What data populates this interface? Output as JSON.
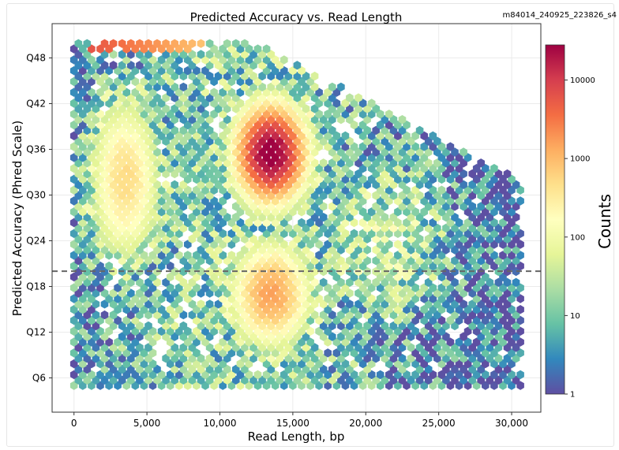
{
  "chart_data": {
    "type": "heatmap",
    "subtype": "hexbin",
    "title": "Predicted Accuracy vs. Read Length",
    "corner_label": "m84014_240925_223826_s4",
    "xlabel": "Read Length, bp",
    "ylabel": "Predicted Accuracy (Phred Scale)",
    "x_ticks": [
      0,
      5000,
      10000,
      15000,
      20000,
      25000,
      30000
    ],
    "x_tick_labels": [
      "0",
      "5,000",
      "10,000",
      "15,000",
      "20,000",
      "25,000",
      "30,000"
    ],
    "y_ticks": [
      6,
      12,
      18,
      24,
      30,
      36,
      42,
      48
    ],
    "y_tick_labels": [
      "Q6",
      "Q12",
      "Q18",
      "Q24",
      "Q30",
      "Q36",
      "Q42",
      "Q48"
    ],
    "xlim": [
      -1500,
      32000
    ],
    "ylim": [
      1.5,
      52.5
    ],
    "grid": true,
    "threshold_line": {
      "y": 20,
      "style": "dashed",
      "color": "#666666"
    },
    "colorbar": {
      "label": "Counts",
      "scale": "log",
      "min": 1,
      "max": 28000,
      "ticks": [
        1,
        10,
        100,
        1000,
        10000
      ],
      "tick_labels": [
        "1",
        "10",
        "100",
        "1000",
        "10000"
      ],
      "colormap": "Spectral_r"
    },
    "density_peak": {
      "x": 13500,
      "y": 35.5,
      "count": 28000
    },
    "observed_range": {
      "x": [
        0,
        30800
      ],
      "y": [
        5,
        50
      ]
    }
  }
}
